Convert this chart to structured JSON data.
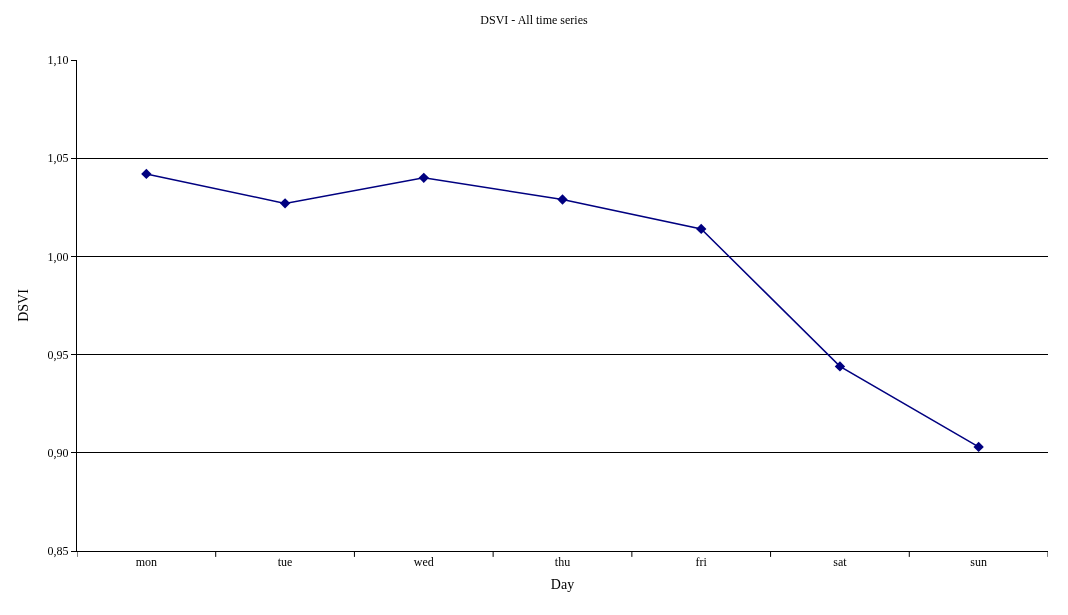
{
  "chart_data": {
    "type": "line",
    "title": "DSVI - All time series",
    "xlabel": "Day",
    "ylabel": "DSVI",
    "categories": [
      "mon",
      "tue",
      "wed",
      "thu",
      "fri",
      "sat",
      "sun"
    ],
    "series": [
      {
        "color": "#000080",
        "values": [
          1.042,
          1.027,
          1.04,
          1.029,
          1.014,
          0.944,
          0.903
        ]
      }
    ],
    "ylim": [
      0.85,
      1.1
    ],
    "yticks": [
      {
        "value": 0.85,
        "label": "0,85"
      },
      {
        "value": 0.9,
        "label": "0,90"
      },
      {
        "value": 0.95,
        "label": "0,95"
      },
      {
        "value": 1.0,
        "label": "1,00"
      },
      {
        "value": 1.05,
        "label": "1,05"
      },
      {
        "value": 1.1,
        "label": "1,10"
      }
    ],
    "grid": "y",
    "marker": "diamond",
    "line_style": "solid"
  }
}
